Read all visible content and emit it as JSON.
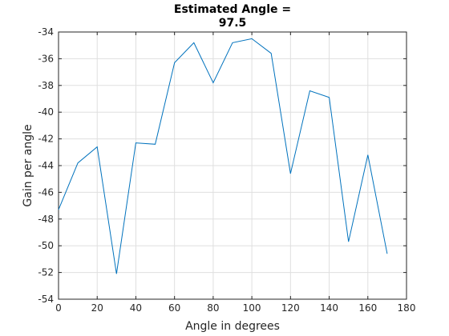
{
  "chart_data": {
    "type": "line",
    "title_lines": [
      "Estimated Angle =",
      "97.5"
    ],
    "xlabel": "Angle in degrees",
    "ylabel": "Gain per angle",
    "xlim": [
      0,
      180
    ],
    "ylim": [
      -54,
      -34
    ],
    "xticks": [
      0,
      20,
      40,
      60,
      80,
      100,
      120,
      140,
      160,
      180
    ],
    "yticks": [
      -34,
      -36,
      -38,
      -40,
      -42,
      -44,
      -46,
      -48,
      -50,
      -52,
      -54
    ],
    "grid": true,
    "series": [
      {
        "color": "#0072bd",
        "x": [
          0,
          10,
          20,
          30,
          40,
          50,
          60,
          70,
          80,
          90,
          100,
          110,
          120,
          130,
          140,
          150,
          160,
          170
        ],
        "y": [
          -47.3,
          -43.8,
          -42.6,
          -52.1,
          -42.3,
          -42.4,
          -36.3,
          -34.8,
          -37.8,
          -34.8,
          -34.5,
          -35.6,
          -44.6,
          -38.4,
          -38.9,
          -49.7,
          -43.2,
          -50.6
        ]
      }
    ]
  }
}
